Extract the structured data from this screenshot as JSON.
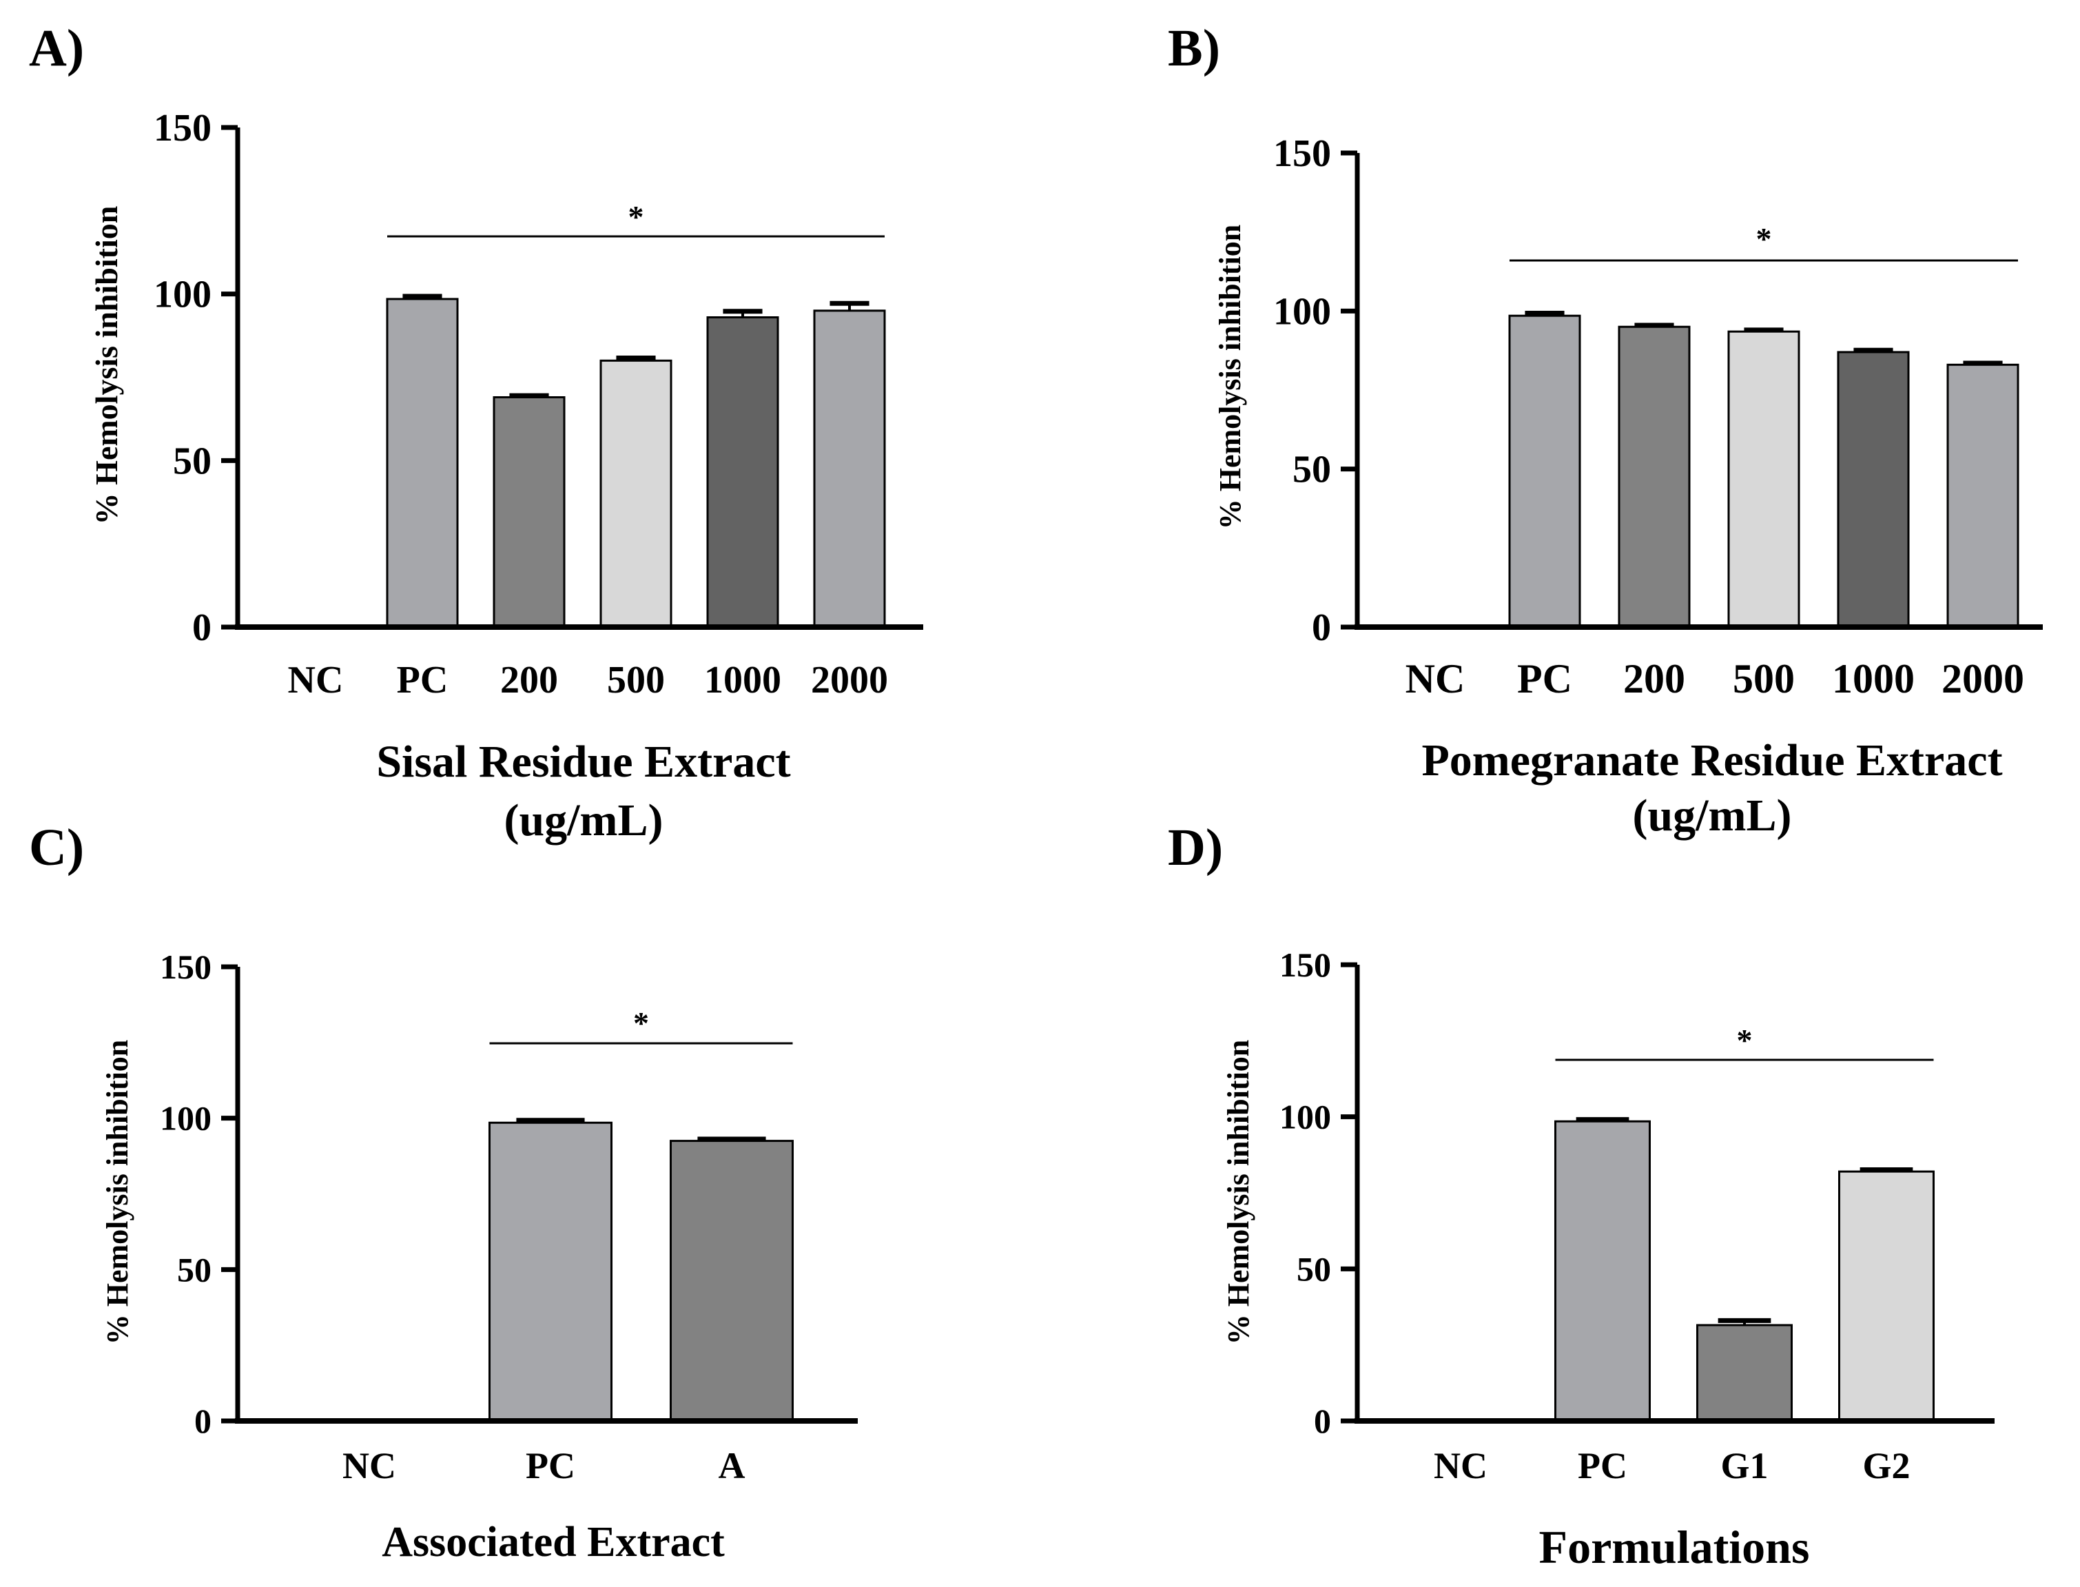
{
  "chart_data": [
    {
      "panel_label": "A)",
      "type": "bar",
      "categories": [
        "NC",
        "PC",
        "200",
        "500",
        "1000",
        "2000"
      ],
      "values": [
        0,
        98.5,
        69,
        80,
        93,
        95
      ],
      "errors": [
        0,
        0.8,
        0.5,
        0.8,
        1.8,
        2.2
      ],
      "colors": [
        "#ffffff",
        "#a6a7ab",
        "#828282",
        "#d8d8d8",
        "#636363",
        "#a6a7ab"
      ],
      "xlabel": [
        "Sisal Residue Extract",
        "(ug/mL)"
      ],
      "ylabel": "% Hemolysis inhibition",
      "ylim": [
        0,
        150
      ],
      "yticks": [
        "0",
        "50",
        "100",
        "150"
      ],
      "significance": {
        "label": "*",
        "from": "PC",
        "to": "2000"
      }
    },
    {
      "panel_label": "B)",
      "type": "bar",
      "categories": [
        "NC",
        "PC",
        "200",
        "500",
        "1000",
        "2000"
      ],
      "values": [
        0,
        98.5,
        95,
        93.5,
        87,
        83
      ],
      "errors": [
        0,
        0.8,
        0.5,
        0.5,
        0.6,
        0.5
      ],
      "colors": [
        "#ffffff",
        "#a6a7ab",
        "#828282",
        "#d8d8d8",
        "#636363",
        "#a6a7ab"
      ],
      "xlabel": [
        "Pomegranate Residue Extract",
        "(ug/mL)"
      ],
      "ylabel": "% Hemolysis inhibition",
      "ylim": [
        0,
        150
      ],
      "yticks": [
        "0",
        "50",
        "100",
        "150"
      ],
      "significance": {
        "label": "*",
        "from": "PC",
        "to": "2000"
      }
    },
    {
      "panel_label": "C)",
      "type": "bar",
      "categories": [
        "NC",
        "PC",
        "A"
      ],
      "values": [
        0,
        98.5,
        92.5
      ],
      "errors": [
        0,
        0.8,
        0.6
      ],
      "colors": [
        "#ffffff",
        "#a6a7ab",
        "#828282"
      ],
      "xlabel": [
        "Associated Extract"
      ],
      "ylabel": "% Hemolysis inhibition",
      "ylim": [
        0,
        150
      ],
      "yticks": [
        "0",
        "50",
        "100",
        "150"
      ],
      "significance": {
        "label": "*",
        "from": "PC",
        "to": "A"
      }
    },
    {
      "panel_label": "D)",
      "type": "bar",
      "categories": [
        "NC",
        "PC",
        "G1",
        "G2"
      ],
      "values": [
        0,
        98.5,
        31.5,
        82
      ],
      "errors": [
        0,
        0.6,
        1.5,
        0.6
      ],
      "colors": [
        "#ffffff",
        "#a6a7ab",
        "#828282",
        "#d8d8d8"
      ],
      "xlabel": [
        "Formulations"
      ],
      "ylabel": "% Hemolysis inhibition",
      "ylim": [
        0,
        150
      ],
      "yticks": [
        "0",
        "50",
        "100",
        "150"
      ],
      "significance": {
        "label": "*",
        "from": "PC",
        "to": "G2"
      }
    }
  ]
}
